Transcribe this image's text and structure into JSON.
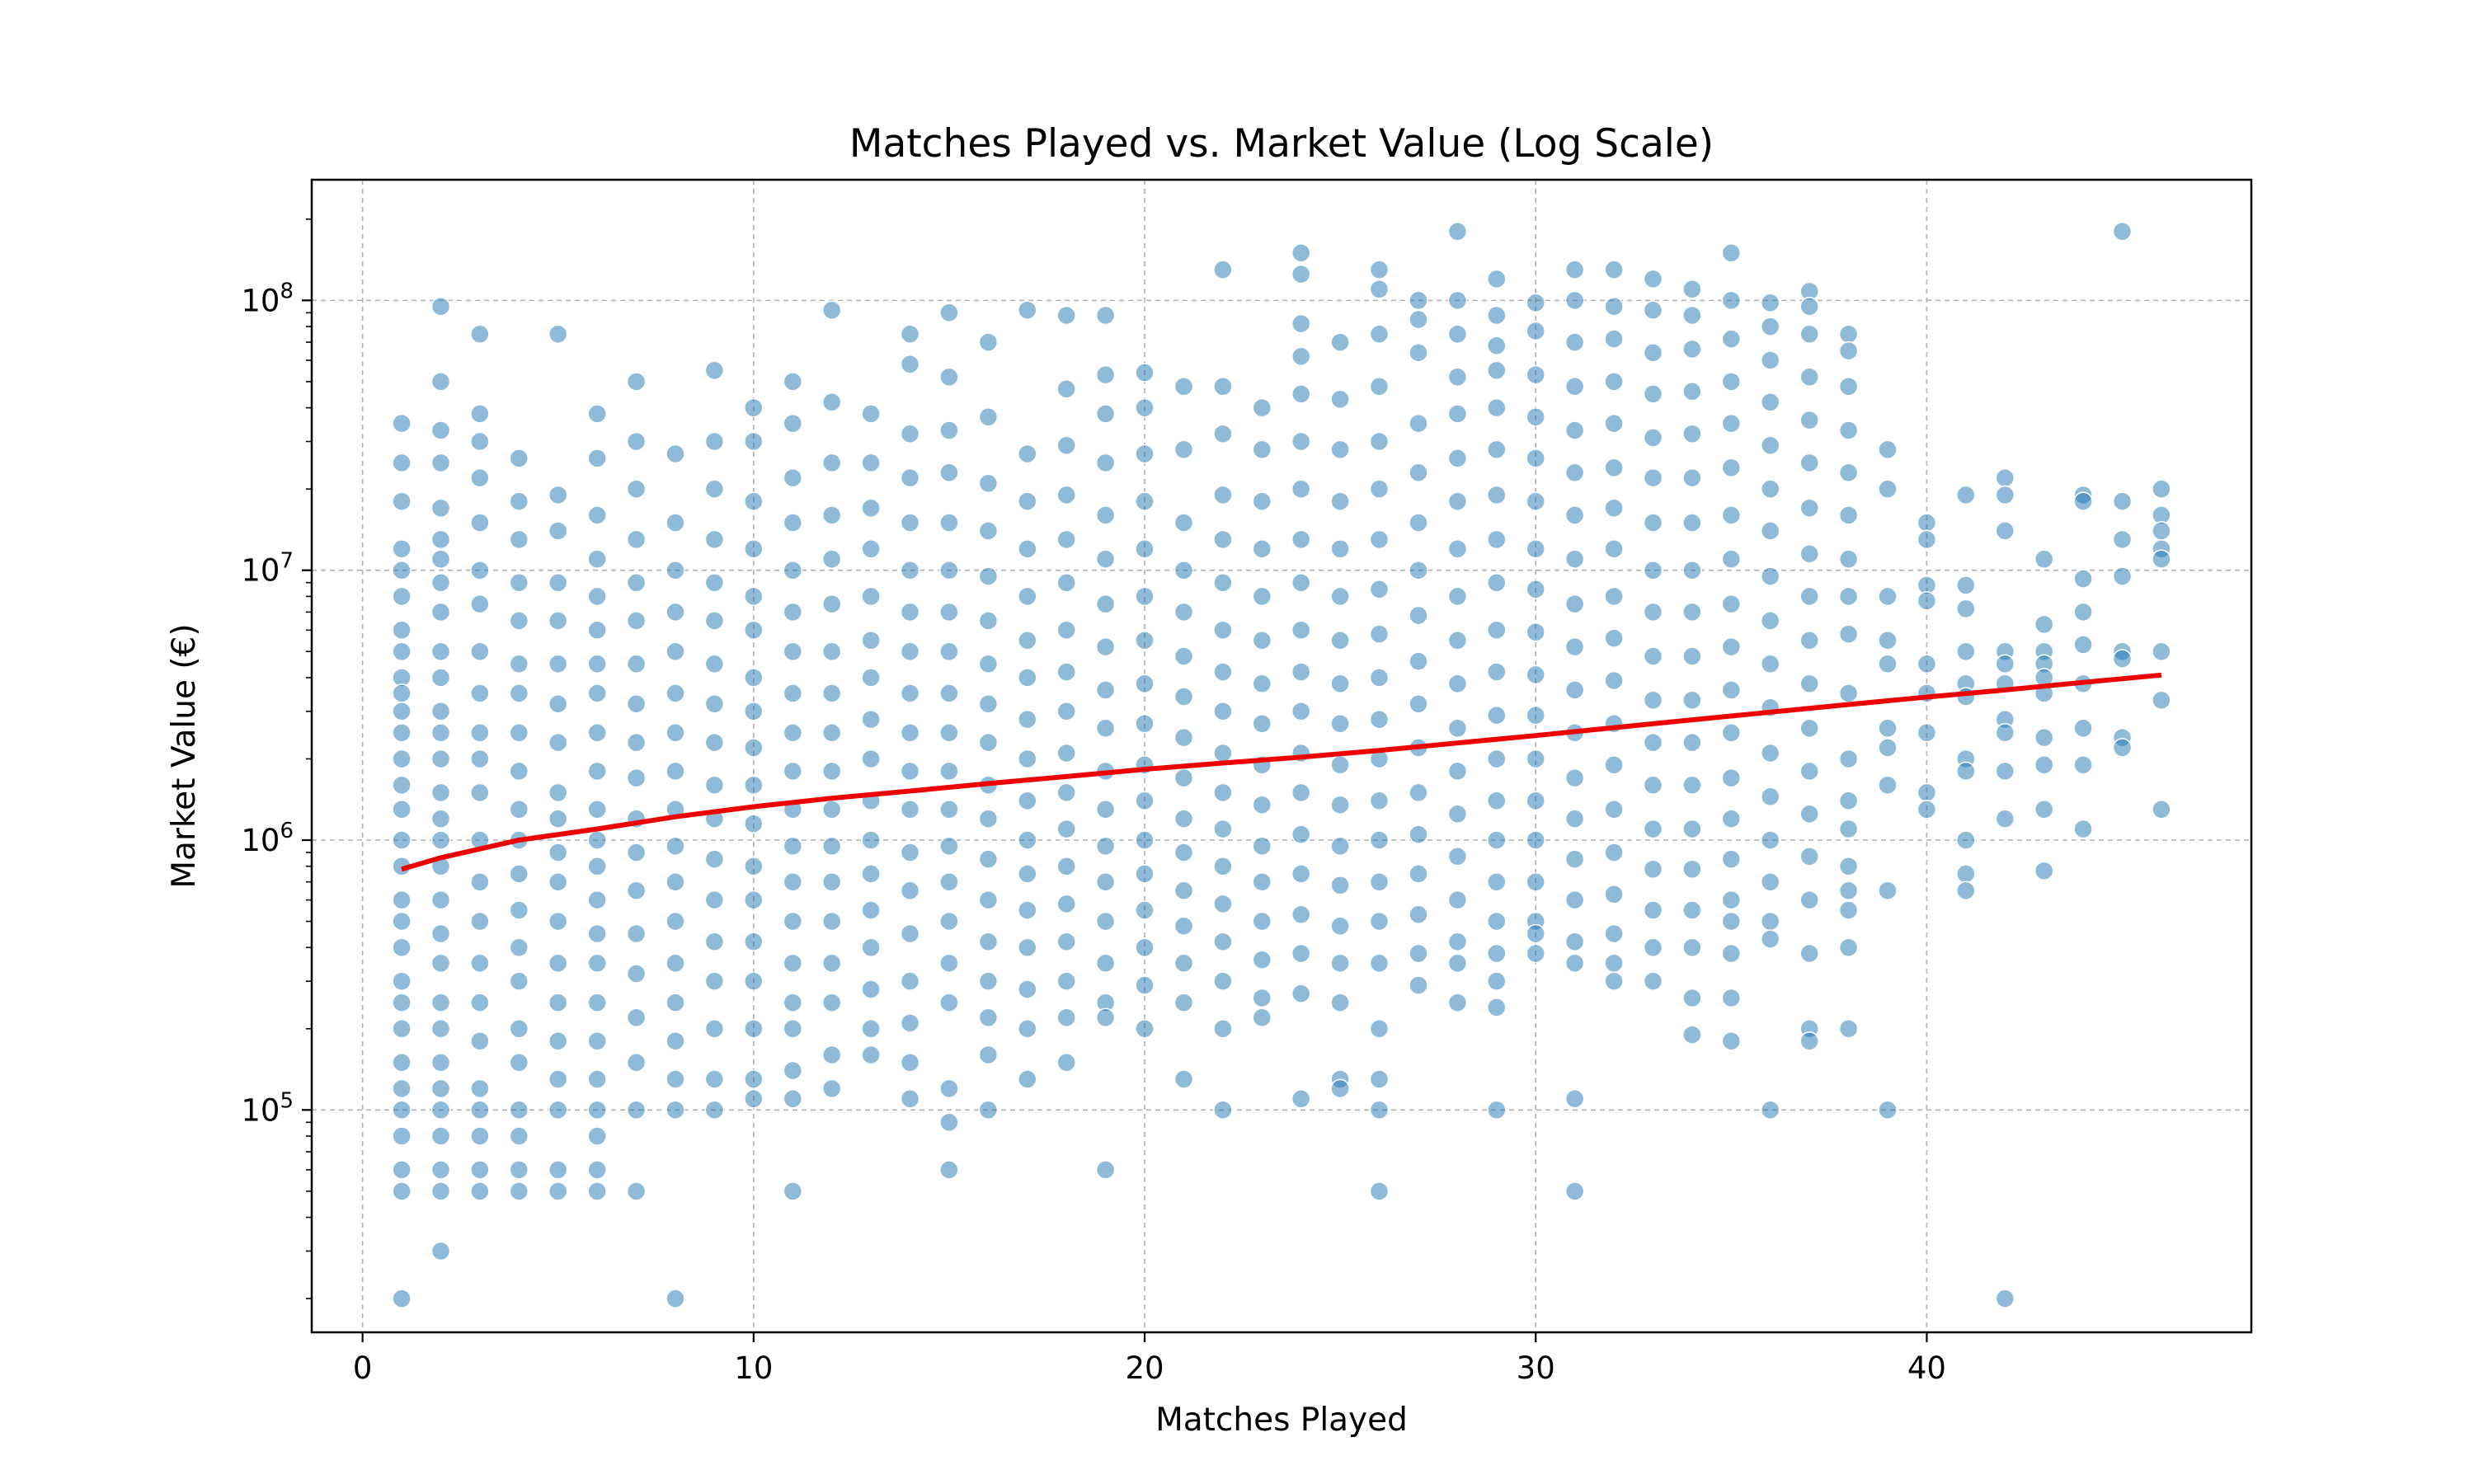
{
  "chart_data": {
    "type": "scatter",
    "title": "Matches Played vs. Market Value (Log Scale)",
    "xlabel": "Matches Played",
    "ylabel": "Market Value (€)",
    "y_scale": "log",
    "xlim": [
      -1.3,
      48.3
    ],
    "ylim": [
      15000,
      280000000
    ],
    "x_ticks": [
      0,
      10,
      20,
      30,
      40
    ],
    "y_ticks": [
      {
        "value": 100000,
        "base": "10",
        "exp": "5"
      },
      {
        "value": 1000000,
        "base": "10",
        "exp": "6"
      },
      {
        "value": 10000000,
        "base": "10",
        "exp": "7"
      },
      {
        "value": 100000000,
        "base": "10",
        "exp": "8"
      }
    ],
    "grid": true,
    "point_color": "#1f77b4",
    "trend_color": "#ee0000",
    "trend_line": {
      "name": "",
      "x": [
        1,
        2,
        4,
        6,
        8,
        10,
        12,
        14,
        16,
        18,
        20,
        22,
        24,
        26,
        28,
        30,
        32,
        34,
        36,
        38,
        40,
        42,
        44,
        46
      ],
      "y": [
        780000,
        860000,
        1000000,
        1100000,
        1220000,
        1330000,
        1430000,
        1520000,
        1620000,
        1720000,
        1830000,
        1930000,
        2030000,
        2150000,
        2290000,
        2440000,
        2610000,
        2790000,
        2980000,
        3180000,
        3390000,
        3600000,
        3840000,
        4090000
      ]
    },
    "points_by_x": [
      {
        "x": 1,
        "y": [
          35000000,
          25000000,
          18000000,
          12000000,
          10000000,
          8000000,
          6000000,
          5000000,
          4000000,
          3500000,
          3000000,
          2500000,
          2000000,
          1600000,
          1300000,
          1000000,
          800000,
          600000,
          500000,
          400000,
          300000,
          250000,
          200000,
          150000,
          120000,
          100000,
          80000,
          60000,
          50000,
          20000
        ]
      },
      {
        "x": 2,
        "y": [
          95000000,
          50000000,
          33000000,
          25000000,
          17000000,
          13000000,
          11000000,
          9000000,
          7000000,
          5000000,
          4000000,
          3000000,
          2500000,
          2000000,
          1500000,
          1200000,
          1000000,
          800000,
          600000,
          450000,
          350000,
          250000,
          200000,
          150000,
          120000,
          100000,
          80000,
          60000,
          50000,
          30000
        ]
      },
      {
        "x": 3,
        "y": [
          75000000,
          38000000,
          30000000,
          22000000,
          15000000,
          10000000,
          7500000,
          5000000,
          3500000,
          2500000,
          2000000,
          1500000,
          1000000,
          700000,
          500000,
          350000,
          250000,
          180000,
          120000,
          100000,
          80000,
          60000,
          50000
        ]
      },
      {
        "x": 4,
        "y": [
          26000000,
          18000000,
          13000000,
          9000000,
          6500000,
          4500000,
          3500000,
          2500000,
          1800000,
          1300000,
          1000000,
          750000,
          550000,
          400000,
          300000,
          200000,
          150000,
          100000,
          80000,
          60000,
          50000
        ]
      },
      {
        "x": 5,
        "y": [
          75000000,
          19000000,
          14000000,
          9000000,
          6500000,
          4500000,
          3200000,
          2300000,
          1500000,
          1200000,
          900000,
          700000,
          500000,
          350000,
          250000,
          180000,
          130000,
          100000,
          60000,
          50000
        ]
      },
      {
        "x": 6,
        "y": [
          38000000,
          26000000,
          16000000,
          11000000,
          8000000,
          6000000,
          4500000,
          3500000,
          2500000,
          1800000,
          1300000,
          1000000,
          800000,
          600000,
          450000,
          350000,
          250000,
          180000,
          130000,
          100000,
          80000,
          60000,
          50000
        ]
      },
      {
        "x": 7,
        "y": [
          50000000,
          30000000,
          20000000,
          13000000,
          9000000,
          6500000,
          4500000,
          3200000,
          2300000,
          1700000,
          1200000,
          900000,
          650000,
          450000,
          320000,
          220000,
          150000,
          100000,
          50000
        ]
      },
      {
        "x": 8,
        "y": [
          27000000,
          15000000,
          10000000,
          7000000,
          5000000,
          3500000,
          2500000,
          1800000,
          1300000,
          950000,
          700000,
          500000,
          350000,
          250000,
          180000,
          130000,
          100000,
          20000
        ]
      },
      {
        "x": 9,
        "y": [
          55000000,
          30000000,
          20000000,
          13000000,
          9000000,
          6500000,
          4500000,
          3200000,
          2300000,
          1600000,
          1200000,
          850000,
          600000,
          420000,
          300000,
          200000,
          130000,
          100000
        ]
      },
      {
        "x": 10,
        "y": [
          40000000,
          30000000,
          18000000,
          12000000,
          8000000,
          6000000,
          4000000,
          3000000,
          2200000,
          1600000,
          1150000,
          800000,
          600000,
          420000,
          300000,
          200000,
          130000,
          110000
        ]
      },
      {
        "x": 11,
        "y": [
          50000000,
          35000000,
          22000000,
          15000000,
          10000000,
          7000000,
          5000000,
          3500000,
          2500000,
          1800000,
          1300000,
          950000,
          700000,
          500000,
          350000,
          250000,
          200000,
          140000,
          110000,
          50000
        ]
      },
      {
        "x": 12,
        "y": [
          92000000,
          42000000,
          25000000,
          16000000,
          11000000,
          7500000,
          5000000,
          3500000,
          2500000,
          1800000,
          1300000,
          950000,
          700000,
          500000,
          350000,
          250000,
          160000,
          120000
        ]
      },
      {
        "x": 13,
        "y": [
          38000000,
          25000000,
          17000000,
          12000000,
          8000000,
          5500000,
          4000000,
          2800000,
          2000000,
          1400000,
          1000000,
          750000,
          550000,
          400000,
          280000,
          200000,
          160000
        ]
      },
      {
        "x": 14,
        "y": [
          75000000,
          58000000,
          32000000,
          22000000,
          15000000,
          10000000,
          7000000,
          5000000,
          3500000,
          2500000,
          1800000,
          1300000,
          900000,
          650000,
          450000,
          300000,
          210000,
          150000,
          110000
        ]
      },
      {
        "x": 15,
        "y": [
          90000000,
          52000000,
          33000000,
          23000000,
          15000000,
          10000000,
          7000000,
          5000000,
          3500000,
          2500000,
          1800000,
          1300000,
          950000,
          700000,
          500000,
          350000,
          250000,
          120000,
          90000,
          60000
        ]
      },
      {
        "x": 16,
        "y": [
          70000000,
          37000000,
          21000000,
          14000000,
          9500000,
          6500000,
          4500000,
          3200000,
          2300000,
          1600000,
          1200000,
          850000,
          600000,
          420000,
          300000,
          220000,
          160000,
          100000
        ]
      },
      {
        "x": 17,
        "y": [
          92000000,
          27000000,
          18000000,
          12000000,
          8000000,
          5500000,
          4000000,
          2800000,
          2000000,
          1400000,
          1000000,
          750000,
          550000,
          400000,
          280000,
          200000,
          130000
        ]
      },
      {
        "x": 18,
        "y": [
          88000000,
          47000000,
          29000000,
          19000000,
          13000000,
          9000000,
          6000000,
          4200000,
          3000000,
          2100000,
          1500000,
          1100000,
          800000,
          580000,
          420000,
          300000,
          220000,
          150000
        ]
      },
      {
        "x": 19,
        "y": [
          88000000,
          53000000,
          38000000,
          25000000,
          16000000,
          11000000,
          7500000,
          5200000,
          3600000,
          2600000,
          1800000,
          1300000,
          950000,
          700000,
          500000,
          350000,
          250000,
          220000,
          60000
        ]
      },
      {
        "x": 20,
        "y": [
          54000000,
          40000000,
          27000000,
          18000000,
          12000000,
          8000000,
          5500000,
          3800000,
          2700000,
          1900000,
          1400000,
          1000000,
          750000,
          550000,
          400000,
          290000,
          200000
        ]
      },
      {
        "x": 21,
        "y": [
          48000000,
          28000000,
          15000000,
          10000000,
          7000000,
          4800000,
          3400000,
          2400000,
          1700000,
          1200000,
          900000,
          650000,
          480000,
          350000,
          250000,
          130000
        ]
      },
      {
        "x": 22,
        "y": [
          130000000,
          48000000,
          32000000,
          19000000,
          13000000,
          9000000,
          6000000,
          4200000,
          3000000,
          2100000,
          1500000,
          1100000,
          800000,
          580000,
          420000,
          300000,
          200000,
          100000
        ]
      },
      {
        "x": 23,
        "y": [
          40000000,
          28000000,
          18000000,
          12000000,
          8000000,
          5500000,
          3800000,
          2700000,
          1900000,
          1350000,
          950000,
          700000,
          500000,
          360000,
          260000,
          220000
        ]
      },
      {
        "x": 24,
        "y": [
          150000000,
          125000000,
          82000000,
          62000000,
          45000000,
          30000000,
          20000000,
          13000000,
          9000000,
          6000000,
          4200000,
          3000000,
          2100000,
          1500000,
          1050000,
          750000,
          530000,
          380000,
          270000,
          110000
        ]
      },
      {
        "x": 25,
        "y": [
          70000000,
          43000000,
          28000000,
          18000000,
          12000000,
          8000000,
          5500000,
          3800000,
          2700000,
          1900000,
          1350000,
          950000,
          680000,
          480000,
          350000,
          250000,
          130000,
          120000
        ]
      },
      {
        "x": 26,
        "y": [
          130000000,
          110000000,
          75000000,
          48000000,
          30000000,
          20000000,
          13000000,
          8500000,
          5800000,
          4000000,
          2800000,
          2000000,
          1400000,
          1000000,
          700000,
          500000,
          350000,
          200000,
          130000,
          100000,
          50000
        ]
      },
      {
        "x": 27,
        "y": [
          100000000,
          85000000,
          64000000,
          35000000,
          23000000,
          15000000,
          10000000,
          6800000,
          4600000,
          3200000,
          2200000,
          1500000,
          1050000,
          750000,
          530000,
          380000,
          290000
        ]
      },
      {
        "x": 28,
        "y": [
          180000000,
          100000000,
          75000000,
          52000000,
          38000000,
          26000000,
          18000000,
          12000000,
          8000000,
          5500000,
          3800000,
          2600000,
          1800000,
          1250000,
          870000,
          600000,
          420000,
          350000,
          250000
        ]
      },
      {
        "x": 29,
        "y": [
          120000000,
          88000000,
          68000000,
          55000000,
          40000000,
          28000000,
          19000000,
          13000000,
          9000000,
          6000000,
          4200000,
          2900000,
          2000000,
          1400000,
          1000000,
          700000,
          500000,
          380000,
          300000,
          240000,
          100000
        ]
      },
      {
        "x": 30,
        "y": [
          98000000,
          77000000,
          53000000,
          37000000,
          26000000,
          18000000,
          12000000,
          8500000,
          5900000,
          4100000,
          2900000,
          2000000,
          1400000,
          1000000,
          700000,
          500000,
          450000,
          380000
        ]
      },
      {
        "x": 31,
        "y": [
          130000000,
          100000000,
          70000000,
          48000000,
          33000000,
          23000000,
          16000000,
          11000000,
          7500000,
          5200000,
          3600000,
          2500000,
          1700000,
          1200000,
          850000,
          600000,
          420000,
          350000,
          110000,
          50000
        ]
      },
      {
        "x": 32,
        "y": [
          130000000,
          95000000,
          72000000,
          50000000,
          35000000,
          24000000,
          17000000,
          12000000,
          8000000,
          5600000,
          3900000,
          2700000,
          1900000,
          1300000,
          900000,
          630000,
          450000,
          350000,
          300000
        ]
      },
      {
        "x": 33,
        "y": [
          120000000,
          92000000,
          64000000,
          45000000,
          31000000,
          22000000,
          15000000,
          10000000,
          7000000,
          4800000,
          3300000,
          2300000,
          1600000,
          1100000,
          780000,
          550000,
          400000,
          300000
        ]
      },
      {
        "x": 34,
        "y": [
          110000000,
          88000000,
          66000000,
          46000000,
          32000000,
          22000000,
          15000000,
          10000000,
          7000000,
          4800000,
          3300000,
          2300000,
          1600000,
          1100000,
          780000,
          550000,
          400000,
          260000,
          190000
        ]
      },
      {
        "x": 35,
        "y": [
          150000000,
          100000000,
          72000000,
          50000000,
          35000000,
          24000000,
          16000000,
          11000000,
          7500000,
          5200000,
          3600000,
          2500000,
          1700000,
          1200000,
          850000,
          600000,
          500000,
          380000,
          260000,
          180000
        ]
      },
      {
        "x": 36,
        "y": [
          98000000,
          80000000,
          60000000,
          42000000,
          29000000,
          20000000,
          14000000,
          9500000,
          6500000,
          4500000,
          3100000,
          2100000,
          1450000,
          1000000,
          700000,
          500000,
          430000,
          100000
        ]
      },
      {
        "x": 37,
        "y": [
          108000000,
          95000000,
          75000000,
          52000000,
          36000000,
          25000000,
          17000000,
          11500000,
          8000000,
          5500000,
          3800000,
          2600000,
          1800000,
          1250000,
          870000,
          600000,
          380000,
          200000,
          180000
        ]
      },
      {
        "x": 38,
        "y": [
          75000000,
          65000000,
          48000000,
          33000000,
          23000000,
          16000000,
          11000000,
          8000000,
          5800000,
          3500000,
          2000000,
          1400000,
          1100000,
          800000,
          650000,
          550000,
          400000,
          200000
        ]
      },
      {
        "x": 39,
        "y": [
          28000000,
          20000000,
          8000000,
          5500000,
          4500000,
          2600000,
          2200000,
          1600000,
          650000,
          100000
        ]
      },
      {
        "x": 40,
        "y": [
          15000000,
          13000000,
          8800000,
          7700000,
          4500000,
          3500000,
          2500000,
          1500000,
          1300000
        ]
      },
      {
        "x": 41,
        "y": [
          19000000,
          8800000,
          7200000,
          5000000,
          3800000,
          3400000,
          2000000,
          1800000,
          1000000,
          750000,
          650000
        ]
      },
      {
        "x": 42,
        "y": [
          22000000,
          19000000,
          14000000,
          5000000,
          4500000,
          3800000,
          2800000,
          2500000,
          1800000,
          1200000,
          20000
        ]
      },
      {
        "x": 43,
        "y": [
          11000000,
          6300000,
          5000000,
          4500000,
          4000000,
          3500000,
          2400000,
          1900000,
          1300000,
          770000
        ]
      },
      {
        "x": 44,
        "y": [
          19000000,
          18000000,
          9300000,
          7000000,
          5300000,
          3800000,
          2600000,
          1900000,
          1100000
        ]
      },
      {
        "x": 45,
        "y": [
          180000000,
          18000000,
          13000000,
          9500000,
          5000000,
          4700000,
          2400000,
          2200000
        ]
      },
      {
        "x": 46,
        "y": [
          20000000,
          16000000,
          14000000,
          12000000,
          11000000,
          5000000,
          3300000,
          1300000
        ]
      }
    ]
  }
}
